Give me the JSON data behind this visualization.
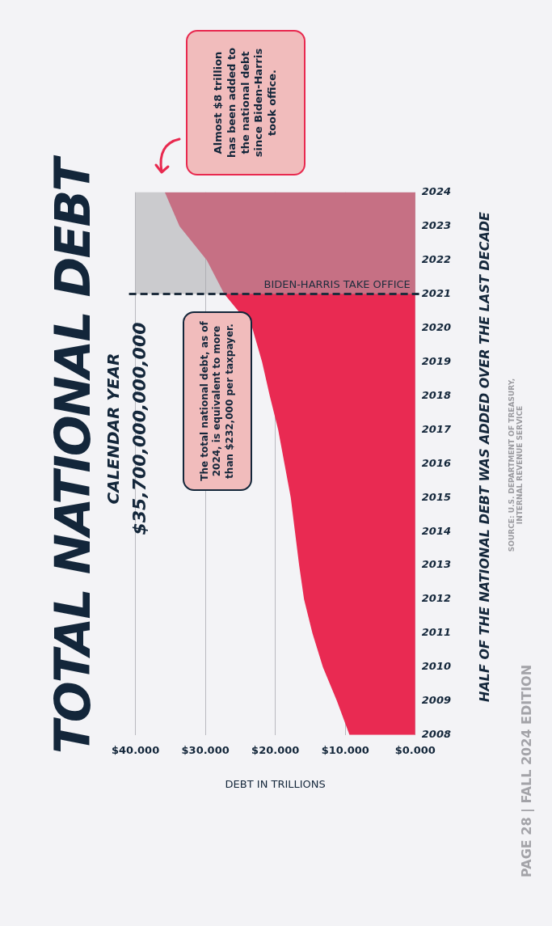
{
  "chart_data": {
    "type": "area",
    "orientation": "horizontal",
    "title": "TOTAL NATIONAL DEBT",
    "subtitle": "CALENDAR YEAR",
    "xlabel": "DEBT IN TRILLIONS",
    "categories": [
      "2024",
      "2023",
      "2022",
      "2021",
      "2020",
      "2019",
      "2018",
      "2017",
      "2016",
      "2015",
      "2014",
      "2013",
      "2012",
      "2011",
      "2010",
      "2009",
      "2008"
    ],
    "series": [
      {
        "color": "#e92a52",
        "values": [
          35.8,
          33.7,
          29.8,
          27.3,
          23.3,
          21.9,
          20.8,
          19.6,
          18.7,
          17.8,
          17.2,
          16.6,
          15.9,
          14.7,
          13.2,
          11.2,
          9.4
        ]
      }
    ],
    "xlim": [
      40,
      0
    ],
    "xticks": [
      {
        "value": 40,
        "label": "$40.000"
      },
      {
        "value": 30,
        "label": "$30.000"
      },
      {
        "value": 20,
        "label": "$20.000"
      },
      {
        "value": 10,
        "label": "$10.000"
      },
      {
        "value": 0,
        "label": "$0.000"
      }
    ],
    "grid": "x",
    "legend": false,
    "ref_lines": [
      {
        "axis": "y",
        "value": "2021",
        "label": "BIDEN-HARRIS TAKE OFFICE",
        "color": "#1e2d3d",
        "line_style": "dashed"
      }
    ],
    "bands": [
      {
        "axis": "y",
        "from": "2021",
        "to": "2024",
        "color": "#a9a9ad"
      }
    ],
    "annotations": [
      "$35,700,000,000,000",
      "The total national debt, as of 2024, is equivalent to more than $232,000 per taxpayer.",
      "Almost $8 trillion has been added to the national debt since Biden-Harris took office.",
      "HALF OF THE NATIONAL DEBT WAS ADDED OVER THE LAST DECADE",
      "SOURCE: U.S. DEPARTMENT OF TREASURY, INTERNAL REVENUE SERVICE",
      "PAGE 28 | FALL 2024 EDITION"
    ]
  }
}
